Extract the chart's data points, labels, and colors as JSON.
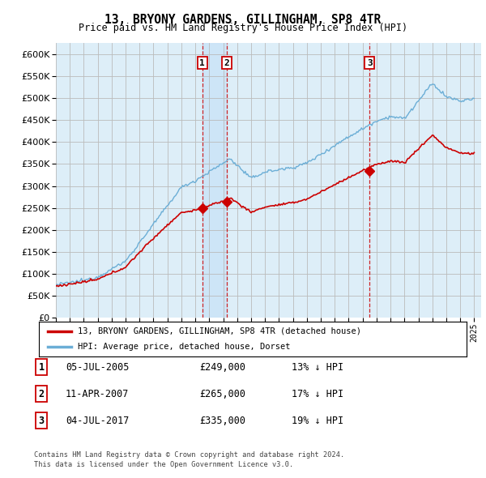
{
  "title": "13, BRYONY GARDENS, GILLINGHAM, SP8 4TR",
  "subtitle": "Price paid vs. HM Land Registry's House Price Index (HPI)",
  "ylim": [
    0,
    625000
  ],
  "yticks": [
    0,
    50000,
    100000,
    150000,
    200000,
    250000,
    300000,
    350000,
    400000,
    450000,
    500000,
    550000,
    600000
  ],
  "legend_line1": "13, BRYONY GARDENS, GILLINGHAM, SP8 4TR (detached house)",
  "legend_line2": "HPI: Average price, detached house, Dorset",
  "transactions": [
    {
      "num": 1,
      "date": "05-JUL-2005",
      "price": 249000,
      "year": 2005.5,
      "pct": "13%",
      "dir": "↓"
    },
    {
      "num": 2,
      "date": "11-APR-2007",
      "price": 265000,
      "year": 2007.25,
      "pct": "17%",
      "dir": "↓"
    },
    {
      "num": 3,
      "date": "04-JUL-2017",
      "price": 335000,
      "year": 2017.5,
      "pct": "19%",
      "dir": "↓"
    }
  ],
  "footnote1": "Contains HM Land Registry data © Crown copyright and database right 2024.",
  "footnote2": "This data is licensed under the Open Government Licence v3.0.",
  "hpi_color": "#6baed6",
  "price_color": "#cc0000",
  "grid_color": "#bbbbbb",
  "background_color": "#ddeef8",
  "shade_color": "#cce4f7",
  "box_color": "#cc0000"
}
